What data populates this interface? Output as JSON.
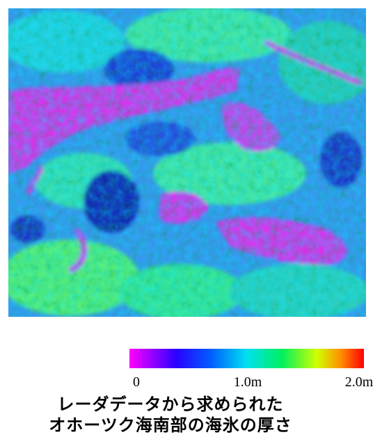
{
  "figure": {
    "colorbar": {
      "ticks": [
        0,
        {
          "value": 1.0,
          "label": "1.0m"
        },
        {
          "value": 2.0,
          "label": "2.0m"
        }
      ]
    },
    "caption": {
      "lines": [
        "レーダデータから求められた",
        "オホーツク海南部の海氷の厚さ"
      ]
    }
  }
}
